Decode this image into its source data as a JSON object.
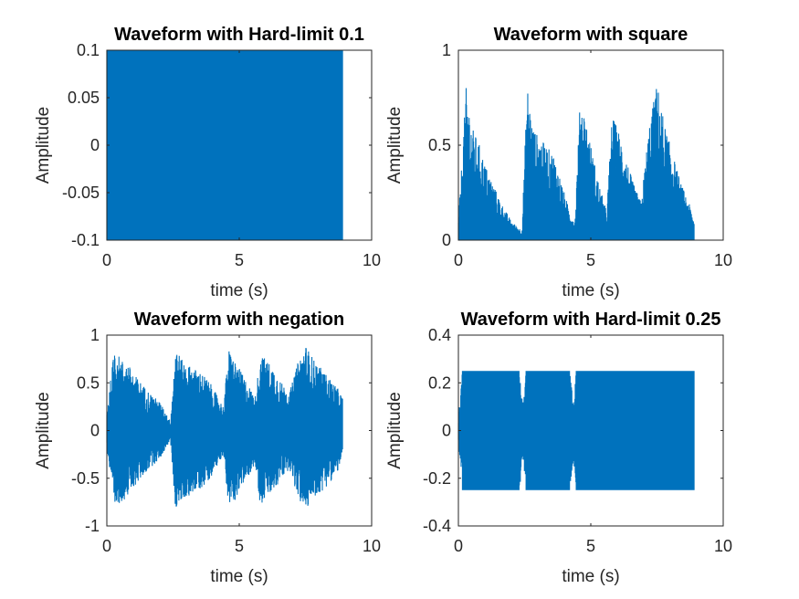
{
  "chart_data": [
    {
      "type": "line",
      "title": "Waveform with Hard-limit 0.1",
      "xlabel": "time (s)",
      "ylabel": "Amplitude",
      "xlim": [
        0,
        10
      ],
      "ylim": [
        -0.1,
        0.1
      ],
      "xticks": [
        "0",
        "5",
        "10"
      ],
      "yticks": [
        "-0.1",
        "-0.05",
        "0",
        "0.05",
        "0.1"
      ],
      "grid": false,
      "color": "#0072BD",
      "series": [
        {
          "x": [
            0,
            0.5,
            1,
            1.5,
            2,
            2.5,
            3,
            3.5,
            4,
            4.5,
            5,
            5.5,
            6,
            6.5,
            7,
            7.5,
            8,
            8.5,
            8.9
          ],
          "envelope_max": [
            0.1,
            0.1,
            0.1,
            0.1,
            0.1,
            0.1,
            0.1,
            0.1,
            0.1,
            0.1,
            0.1,
            0.1,
            0.1,
            0.1,
            0.1,
            0.1,
            0.1,
            0.1,
            0.1
          ],
          "envelope_min": [
            -0.1,
            -0.1,
            -0.1,
            -0.1,
            -0.1,
            -0.1,
            -0.1,
            -0.1,
            -0.1,
            -0.1,
            -0.1,
            -0.1,
            -0.1,
            -0.1,
            -0.1,
            -0.1,
            -0.1,
            -0.1,
            -0.1
          ]
        }
      ]
    },
    {
      "type": "line",
      "title": "Waveform with square",
      "xlabel": "time (s)",
      "ylabel": "Amplitude",
      "xlim": [
        0,
        10
      ],
      "ylim": [
        0,
        1
      ],
      "xticks": [
        "0",
        "5",
        "10"
      ],
      "yticks": [
        "0",
        "0.5",
        "1"
      ],
      "grid": false,
      "color": "#0072BD",
      "series": [
        {
          "x": [
            0,
            0.3,
            0.5,
            0.8,
            1.0,
            1.3,
            1.6,
            2.0,
            2.4,
            2.6,
            2.8,
            3.0,
            3.3,
            3.6,
            3.9,
            4.2,
            4.4,
            4.6,
            4.8,
            5.0,
            5.3,
            5.6,
            5.8,
            6.0,
            6.3,
            6.6,
            6.9,
            7.2,
            7.5,
            7.8,
            8.1,
            8.4,
            8.7,
            8.9
          ],
          "envelope_max": [
            0.1,
            0.82,
            0.6,
            0.5,
            0.4,
            0.3,
            0.2,
            0.1,
            0.05,
            0.82,
            0.6,
            0.55,
            0.5,
            0.45,
            0.3,
            0.15,
            0.1,
            0.75,
            0.65,
            0.5,
            0.3,
            0.15,
            0.65,
            0.6,
            0.45,
            0.3,
            0.2,
            0.6,
            0.83,
            0.6,
            0.45,
            0.3,
            0.2,
            0.1
          ],
          "envelope_min": [
            0,
            0,
            0,
            0,
            0,
            0,
            0,
            0,
            0,
            0,
            0,
            0,
            0,
            0,
            0,
            0,
            0,
            0,
            0,
            0,
            0,
            0,
            0,
            0,
            0,
            0,
            0,
            0,
            0,
            0,
            0,
            0,
            0,
            0
          ]
        }
      ]
    },
    {
      "type": "line",
      "title": "Waveform with negation",
      "xlabel": "time (s)",
      "ylabel": "Amplitude",
      "xlim": [
        0,
        10
      ],
      "ylim": [
        -1,
        1
      ],
      "xticks": [
        "0",
        "5",
        "10"
      ],
      "yticks": [
        "-1",
        "-0.5",
        "0",
        "0.5",
        "1"
      ],
      "grid": false,
      "color": "#0072BD",
      "series": [
        {
          "x": [
            0,
            0.3,
            0.5,
            0.8,
            1.0,
            1.3,
            1.6,
            2.0,
            2.4,
            2.6,
            2.8,
            3.0,
            3.3,
            3.6,
            3.9,
            4.2,
            4.4,
            4.6,
            4.8,
            5.0,
            5.3,
            5.6,
            5.8,
            6.0,
            6.3,
            6.6,
            6.9,
            7.2,
            7.5,
            7.8,
            8.1,
            8.4,
            8.7,
            8.9
          ],
          "envelope_max": [
            0.2,
            0.9,
            0.75,
            0.7,
            0.6,
            0.5,
            0.4,
            0.3,
            0.1,
            0.9,
            0.75,
            0.7,
            0.65,
            0.6,
            0.5,
            0.35,
            0.25,
            0.85,
            0.75,
            0.65,
            0.5,
            0.35,
            0.8,
            0.75,
            0.65,
            0.5,
            0.4,
            0.7,
            0.9,
            0.75,
            0.65,
            0.55,
            0.45,
            0.35
          ],
          "envelope_min": [
            -0.2,
            -0.85,
            -0.75,
            -0.7,
            -0.6,
            -0.5,
            -0.4,
            -0.3,
            -0.1,
            -0.85,
            -0.75,
            -0.7,
            -0.65,
            -0.6,
            -0.5,
            -0.35,
            -0.25,
            -0.8,
            -0.75,
            -0.65,
            -0.5,
            -0.35,
            -0.8,
            -0.7,
            -0.65,
            -0.5,
            -0.4,
            -0.7,
            -0.85,
            -0.7,
            -0.65,
            -0.55,
            -0.45,
            -0.25
          ]
        }
      ]
    },
    {
      "type": "line",
      "title": "Waveform with Hard-limit 0.25",
      "xlabel": "time (s)",
      "ylabel": "Amplitude",
      "xlim": [
        0,
        10
      ],
      "ylim": [
        -0.4,
        0.4
      ],
      "xticks": [
        "0",
        "5",
        "10"
      ],
      "yticks": [
        "-0.4",
        "-0.2",
        "0",
        "0.2",
        "0.4"
      ],
      "grid": false,
      "color": "#0072BD",
      "series": [
        {
          "x": [
            0,
            0.15,
            0.3,
            1.0,
            2.0,
            2.3,
            2.45,
            2.55,
            3.5,
            4.2,
            4.35,
            4.45,
            5.5,
            6.5,
            7.5,
            8.5,
            8.9
          ],
          "envelope_max": [
            0.05,
            0.25,
            0.25,
            0.25,
            0.25,
            0.25,
            0.1,
            0.25,
            0.25,
            0.25,
            0.12,
            0.25,
            0.25,
            0.25,
            0.25,
            0.25,
            0.25
          ],
          "envelope_min": [
            -0.05,
            -0.25,
            -0.25,
            -0.25,
            -0.25,
            -0.25,
            -0.12,
            -0.25,
            -0.25,
            -0.25,
            -0.12,
            -0.25,
            -0.25,
            -0.25,
            -0.25,
            -0.25,
            -0.25
          ]
        }
      ]
    }
  ]
}
